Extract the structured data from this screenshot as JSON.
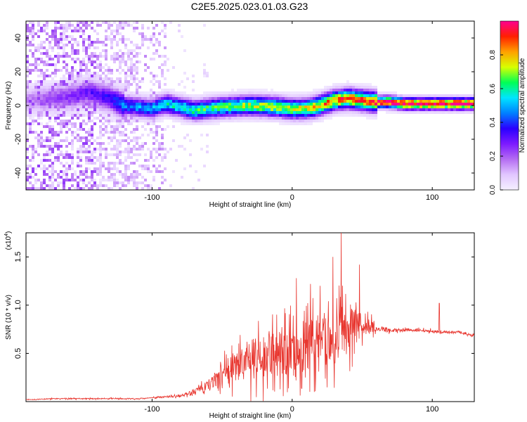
{
  "title": "C2E5.2025.023.01.03.G23",
  "colors": {
    "snr_line": "#e8362f",
    "colormap": [
      "#f5f0ff",
      "#e2c6ff",
      "#b46cf2",
      "#7d1aff",
      "#2a00ff",
      "#0080ff",
      "#00e5ff",
      "#00ff55",
      "#d8ff00",
      "#ffa000",
      "#ff2000",
      "#ff0090"
    ]
  },
  "chart_data": [
    {
      "type": "heatmap",
      "xlabel": "Height of straight line (km)",
      "ylabel": "Frequency (Hz)",
      "xlim": [
        -190,
        130
      ],
      "ylim": [
        -50,
        50
      ],
      "xticks": [
        -100,
        0,
        100
      ],
      "yticks": [
        -40,
        -20,
        0,
        20,
        40
      ],
      "colorbar": {
        "label": "Normalized spectral amplitude",
        "range": [
          0.0,
          1.0
        ],
        "ticks": [
          "0.0",
          "0.2",
          "0.4",
          "0.6",
          "0.8"
        ]
      },
      "ridge": {
        "x": [
          -190,
          -160,
          -145,
          -130,
          -120,
          -100,
          -90,
          -70,
          -50,
          -30,
          -10,
          0,
          10,
          20,
          30,
          40,
          50,
          60,
          70,
          80,
          90,
          100,
          110,
          130
        ],
        "freq": [
          3,
          5,
          8,
          4,
          0,
          -2,
          1,
          -3,
          -1,
          0,
          -1,
          -2,
          -2,
          0,
          3,
          4,
          3,
          2,
          2,
          1,
          1,
          1,
          1,
          1
        ],
        "peak_amplitude": [
          0.15,
          0.25,
          0.3,
          0.35,
          0.45,
          0.5,
          0.55,
          0.6,
          0.65,
          0.7,
          0.72,
          0.72,
          0.75,
          0.8,
          0.85,
          0.88,
          0.9,
          0.95,
          0.97,
          1.0,
          1.0,
          1.0,
          1.0,
          1.0
        ]
      },
      "noise_until_km": -90
    },
    {
      "type": "line",
      "xlabel": "Height of straight line (km)",
      "ylabel": "SNR (10 * v/v)",
      "y_multiplier": "(x10",
      "y_multiplier_exp": "4",
      "xlim": [
        -190,
        130
      ],
      "ylim": [
        0,
        1.75
      ],
      "xticks": [
        -100,
        0,
        100
      ],
      "yticks": [
        0.5,
        1.0,
        1.5
      ],
      "ytick_labels": [
        "0.5",
        "1.0",
        "1.5"
      ],
      "series": [
        {
          "x": [
            -190,
            -170,
            -150,
            -130,
            -110,
            -100,
            -90,
            -80,
            -70,
            -60,
            -55,
            -50,
            -45,
            -40,
            -35,
            -30,
            -20,
            -10,
            0,
            10,
            20,
            30,
            35,
            40,
            45,
            50,
            60,
            70,
            80,
            90,
            100,
            110,
            120,
            130
          ],
          "y": [
            0.02,
            0.03,
            0.03,
            0.03,
            0.03,
            0.04,
            0.05,
            0.06,
            0.1,
            0.17,
            0.22,
            0.28,
            0.33,
            0.38,
            0.4,
            0.42,
            0.45,
            0.5,
            0.55,
            0.6,
            0.63,
            0.68,
            0.72,
            0.72,
            0.78,
            0.8,
            0.76,
            0.74,
            0.74,
            0.74,
            0.73,
            0.72,
            0.72,
            0.68
          ],
          "spread": [
            0.005,
            0.01,
            0.01,
            0.01,
            0.01,
            0.01,
            0.02,
            0.03,
            0.05,
            0.1,
            0.15,
            0.2,
            0.3,
            0.35,
            0.4,
            0.45,
            0.45,
            0.5,
            0.5,
            0.55,
            0.55,
            0.55,
            0.5,
            0.45,
            0.4,
            0.25,
            0.08,
            0.04,
            0.03,
            0.03,
            0.03,
            0.02,
            0.02,
            0.02
          ]
        }
      ],
      "peaks": [
        {
          "x": 35,
          "y": 1.75
        },
        {
          "x": 29,
          "y": 1.5
        },
        {
          "x": 48,
          "y": 1.42
        },
        {
          "x": 3,
          "y": 1.28
        },
        {
          "x": 13,
          "y": 1.22
        },
        {
          "x": 105,
          "y": 1.02
        },
        {
          "x": 20,
          "y": 1.2
        }
      ]
    }
  ]
}
